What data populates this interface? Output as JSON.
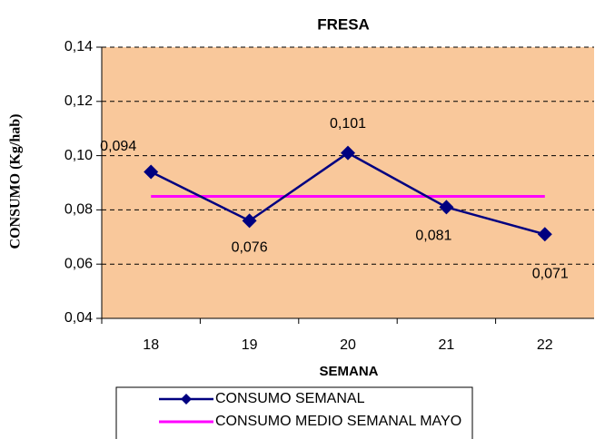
{
  "chart_data": {
    "type": "line",
    "title": "FRESA",
    "x_label": "SEMANA",
    "y_label": "CONSUMO  (Kg/hab)",
    "categories": [
      "18",
      "19",
      "20",
      "21",
      "22"
    ],
    "series": [
      {
        "name": "CONSUMO SEMANAL",
        "color": "#000080",
        "values": [
          0.094,
          0.076,
          0.101,
          0.081,
          0.071
        ],
        "value_labels": [
          "0,094",
          "0,076",
          "0,101",
          "0,081",
          "0,071"
        ]
      },
      {
        "name": "CONSUMO MEDIO SEMANAL MAYO",
        "color": "#ff00ff",
        "values": [
          0.085,
          0.085,
          0.085,
          0.085,
          0.085
        ]
      }
    ],
    "ylim": [
      0.04,
      0.14
    ],
    "yticks": [
      {
        "value": 0.04,
        "label": "0,04"
      },
      {
        "value": 0.06,
        "label": "0,06"
      },
      {
        "value": 0.08,
        "label": "0,08"
      },
      {
        "value": 0.1,
        "label": "0,10"
      },
      {
        "value": 0.12,
        "label": "0,12"
      },
      {
        "value": 0.14,
        "label": "0,14"
      }
    ],
    "grid": true,
    "plot_background": "#f9c89b",
    "legend": "bottom"
  }
}
